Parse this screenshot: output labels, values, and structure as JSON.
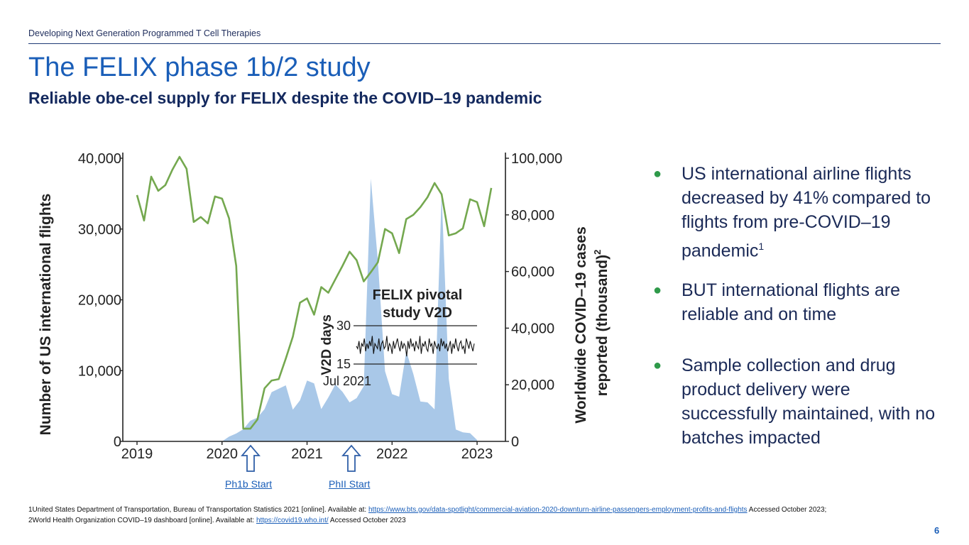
{
  "slide": {
    "header": "Developing Next Generation Programmed T Cell Therapies",
    "title": "The FELIX phase 1b/2 study",
    "subtitle": "Reliable obe-cel supply for FELIX despite the COVID–19 pandemic",
    "page_number": "6"
  },
  "bullets": [
    {
      "text": "US international airline flights decreased by 41% compared to flights from pre-COVID–19 pandemic",
      "sup": "1"
    },
    {
      "text": "BUT international flights are reliable and on time",
      "sup": ""
    },
    {
      "text": "Sample collection and drug product delivery were successfully maintained, with no batches impacted",
      "sup": ""
    }
  ],
  "markers": {
    "ph1b": "Ph1b Start",
    "ph2": "PhII Start"
  },
  "footnotes": {
    "f1_text": "1United States Department of Transportation, Bureau of Transportation Statistics 2021 [online]. Available at: ",
    "f1_link": "https://www.bts.gov/data-spotlight/commercial-aviation-2020-downturn-airline-passengers-employment-profits-and-flights",
    "f1_after": " Accessed October 2023;",
    "f2_text": "2World Health Organization COVID–19 dashboard [online]. Available at: ",
    "f2_link": "https://covid19.who.int/",
    "f2_after": "  Accessed October 2023"
  },
  "colors": {
    "flights_line": "#74a84f",
    "covid_area": "#a9c8e8",
    "inset_line": "#111111"
  },
  "chart_data": {
    "type": "line",
    "ylabel": "Number of US international flights",
    "ylabel_right": "Worldwide COVID–19 cases reported (thousand)",
    "ylabel_right_sup": "2",
    "x_ticks": [
      "2019",
      "2020",
      "2021",
      "2022",
      "2023"
    ],
    "xlim": [
      2019,
      2023.25
    ],
    "ylim": [
      0,
      40000
    ],
    "y_ticks": [
      "40,000",
      "30,000",
      "20,000",
      "10,000",
      "0"
    ],
    "y2lim": [
      0,
      100000
    ],
    "y2_ticks": [
      "100,000",
      "80,000",
      "60,000",
      "40,000",
      "20,000",
      "0"
    ],
    "series": [
      {
        "name": "US international flights",
        "axis": "left",
        "type": "line",
        "x": [
          2019.0,
          2019.083,
          2019.167,
          2019.25,
          2019.333,
          2019.417,
          2019.5,
          2019.583,
          2019.667,
          2019.75,
          2019.833,
          2019.917,
          2020.0,
          2020.083,
          2020.167,
          2020.25,
          2020.333,
          2020.417,
          2020.5,
          2020.583,
          2020.667,
          2020.75,
          2020.833,
          2020.917,
          2021.0,
          2021.083,
          2021.167,
          2021.25,
          2021.333,
          2021.417,
          2021.5,
          2021.583,
          2021.667,
          2021.75,
          2021.833,
          2021.917,
          2022.0,
          2022.083,
          2022.167,
          2022.25,
          2022.333,
          2022.417,
          2022.5,
          2022.583,
          2022.667,
          2022.75,
          2022.833,
          2022.917,
          2023.0,
          2023.083,
          2023.167
        ],
        "y": [
          34800,
          31200,
          37400,
          35400,
          36200,
          38400,
          40200,
          38500,
          31000,
          31700,
          30800,
          34600,
          34300,
          31500,
          24800,
          1800,
          1800,
          3100,
          7500,
          8600,
          8800,
          11700,
          14800,
          19600,
          20200,
          17900,
          21800,
          21000,
          22900,
          24800,
          26800,
          25600,
          22600,
          23900,
          25300,
          30000,
          29400,
          26600,
          31400,
          32000,
          33100,
          34500,
          36500,
          34900,
          29100,
          29400,
          30100,
          34200,
          33800,
          30400,
          35800
        ]
      },
      {
        "name": "Worldwide COVID–19 cases",
        "axis": "right",
        "type": "area",
        "x": [
          2020.0,
          2020.083,
          2020.167,
          2020.25,
          2020.333,
          2020.417,
          2020.5,
          2020.583,
          2020.667,
          2020.75,
          2020.833,
          2020.917,
          2021.0,
          2021.083,
          2021.167,
          2021.25,
          2021.333,
          2021.417,
          2021.5,
          2021.583,
          2021.667,
          2021.75,
          2021.833,
          2021.917,
          2022.0,
          2022.083,
          2022.167,
          2022.25,
          2022.333,
          2022.417,
          2022.5,
          2022.583,
          2022.667,
          2022.75,
          2022.833,
          2022.917,
          2023.0
        ],
        "y": [
          0,
          1700,
          2800,
          4300,
          7300,
          8400,
          11400,
          17400,
          18600,
          19800,
          11200,
          14500,
          21500,
          20500,
          11400,
          15500,
          20100,
          17500,
          13800,
          15300,
          19500,
          92800,
          63700,
          24800,
          16700,
          15800,
          31800,
          23800,
          14100,
          13800,
          11300,
          87600,
          22100,
          4200,
          3200,
          2900,
          500
        ]
      }
    ],
    "inset": {
      "title": "FELIX pivotal study V2D",
      "ylabel": "V2D days",
      "y_ticks": [
        "30",
        "15"
      ],
      "ylim": [
        15,
        30
      ],
      "xlabel": "Jul 2021",
      "values": [
        22,
        21,
        24,
        19,
        23,
        22,
        25,
        20,
        23,
        21,
        24,
        22,
        26,
        19,
        23,
        22,
        21,
        25,
        20,
        23,
        24,
        21,
        22,
        26,
        20,
        23,
        22,
        19,
        24,
        21,
        23,
        25,
        22,
        20,
        24,
        21,
        23,
        22,
        18,
        24,
        21,
        25,
        22,
        23,
        20,
        24,
        22,
        21,
        26,
        19,
        23,
        22,
        24,
        21,
        20,
        25,
        22,
        23,
        19,
        24,
        22,
        21,
        23,
        20,
        25,
        22,
        24,
        21,
        23,
        20,
        22,
        24,
        19,
        23,
        21,
        25,
        22,
        20,
        23,
        24,
        21,
        22,
        19,
        25,
        23,
        21,
        24,
        22,
        20,
        23
      ]
    }
  }
}
